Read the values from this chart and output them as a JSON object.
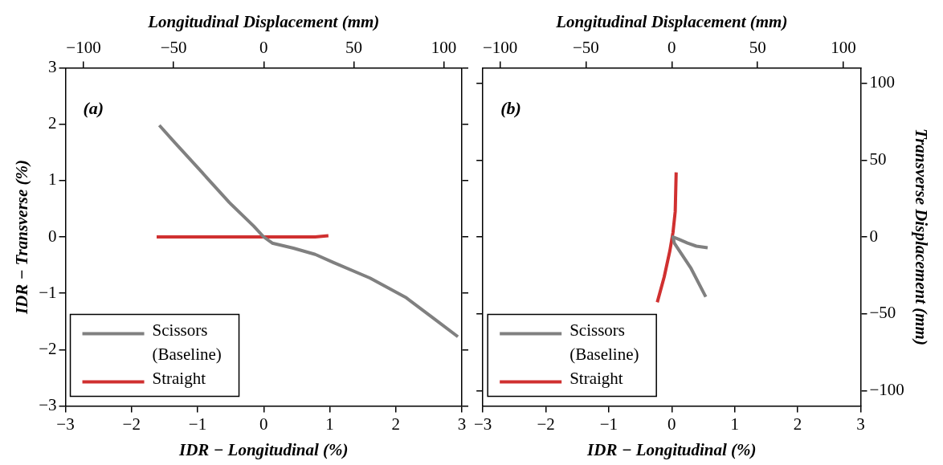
{
  "chart_data": [
    {
      "type": "line",
      "xlabel": "IDR − Longitudinal (%)",
      "ylabel": "IDR − Transverse (%)",
      "x2label": "Longitudinal Displacement (mm)",
      "xlim": [
        -3,
        3
      ],
      "xticks": [
        -3,
        -2,
        -1,
        0,
        1,
        2,
        3
      ],
      "x2lim": [
        -110,
        110
      ],
      "x2ticks": [
        -100,
        -50,
        0,
        50,
        100
      ],
      "ylim": [
        -3,
        3
      ],
      "yticks": [
        -3,
        -2,
        -1,
        0,
        1,
        2,
        3
      ],
      "legend": "bottom left",
      "marker": "none",
      "line_style": "solid",
      "annotations": [
        "(a)"
      ],
      "series": [
        {
          "name": "Scissors (Baseline)",
          "color": "#808080",
          "x": [
            -1.58,
            -1.35,
            -0.93,
            -0.52,
            -0.15,
            0,
            0.13,
            0.45,
            0.78,
            1.05,
            1.61,
            2.16,
            2.58,
            2.94
          ],
          "values": [
            1.98,
            1.68,
            1.14,
            0.61,
            0.19,
            0,
            -0.11,
            -0.2,
            -0.31,
            -0.45,
            -0.73,
            -1.08,
            -1.45,
            -1.77
          ]
        },
        {
          "name": "Straight",
          "color": "#d03030",
          "x": [
            -1.62,
            -0.8,
            0,
            0.78,
            0.98
          ],
          "values": [
            0,
            0,
            0,
            0,
            0.02
          ]
        }
      ]
    },
    {
      "type": "line",
      "xlabel": "IDR − Longitudinal (%)",
      "x2label": "Longitudinal Displacement (mm)",
      "y2label": "Transverse Displacement (mm)",
      "xlim": [
        -3,
        3
      ],
      "xticks": [
        -3,
        -2,
        -1,
        0,
        1,
        2,
        3
      ],
      "x2lim": [
        -110,
        110
      ],
      "x2ticks": [
        -100,
        -50,
        0,
        50,
        100
      ],
      "y2lim": [
        -110,
        110
      ],
      "y2ticks": [
        -100,
        -50,
        0,
        50,
        100
      ],
      "legend": "bottom left",
      "marker": "none",
      "line_style": "solid",
      "annotations": [
        "(b)"
      ],
      "series": [
        {
          "name": "Scissors (Baseline)",
          "color": "#808080",
          "axis": "y2",
          "x": [
            0.57,
            0.39,
            0.25,
            0.11,
            0.02,
            0.04,
            0.3,
            0.54
          ],
          "values": [
            -7,
            -6,
            -4,
            -1.5,
            0,
            -4,
            -20,
            -39
          ]
        },
        {
          "name": "Straight",
          "color": "#d03030",
          "axis": "y2",
          "x": [
            -0.23,
            -0.12,
            -0.03,
            0.02,
            0.055,
            0.07
          ],
          "values": [
            -42.5,
            -26,
            -9,
            3,
            16.5,
            42
          ]
        }
      ]
    }
  ]
}
